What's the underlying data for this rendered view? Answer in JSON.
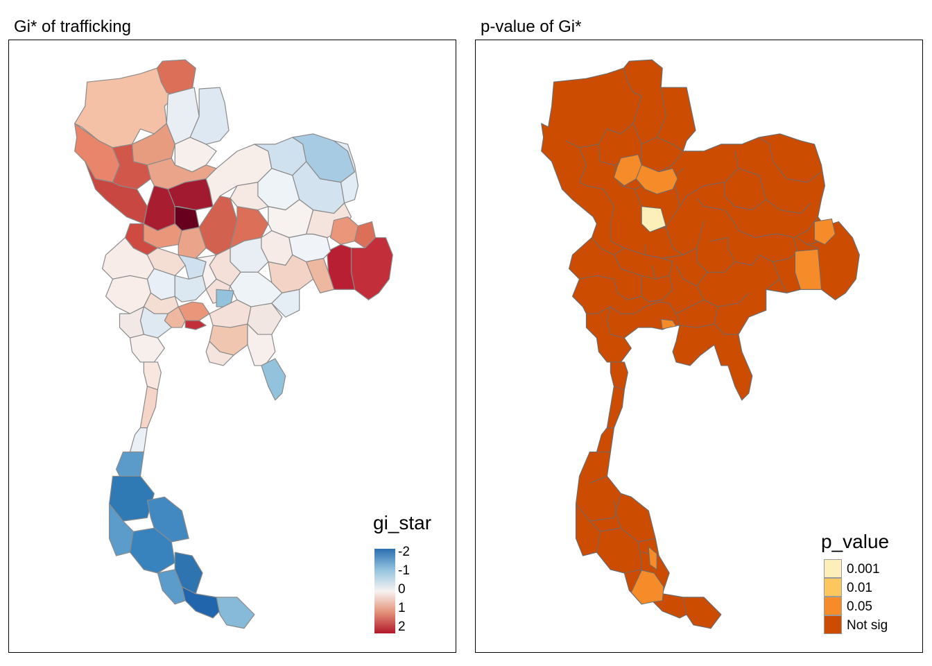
{
  "left_panel": {
    "title": "Gi* of trafficking",
    "legend": {
      "title": "gi_star",
      "labels": [
        "-2",
        "-1",
        "0",
        "1",
        "2"
      ],
      "colors": [
        "#2166ac",
        "#92c5de",
        "#f7f7f7",
        "#f4a582",
        "#b2182b"
      ]
    }
  },
  "right_panel": {
    "title": "p-value of Gi*",
    "legend": {
      "title": "p_value",
      "items": [
        {
          "label": "0.001",
          "color": "#fdefba"
        },
        {
          "label": "0.01",
          "color": "#fdc75f"
        },
        {
          "label": "0.05",
          "color": "#f58c29"
        },
        {
          "label": "Not sig",
          "color": "#cc4c02"
        }
      ]
    }
  },
  "colors": {
    "border": "#7f7f7f",
    "hotspot_dark": "#67001f",
    "hotspot": "#b2182b",
    "coldspot": "#2166ac",
    "not_sig": "#cc4c02"
  }
}
